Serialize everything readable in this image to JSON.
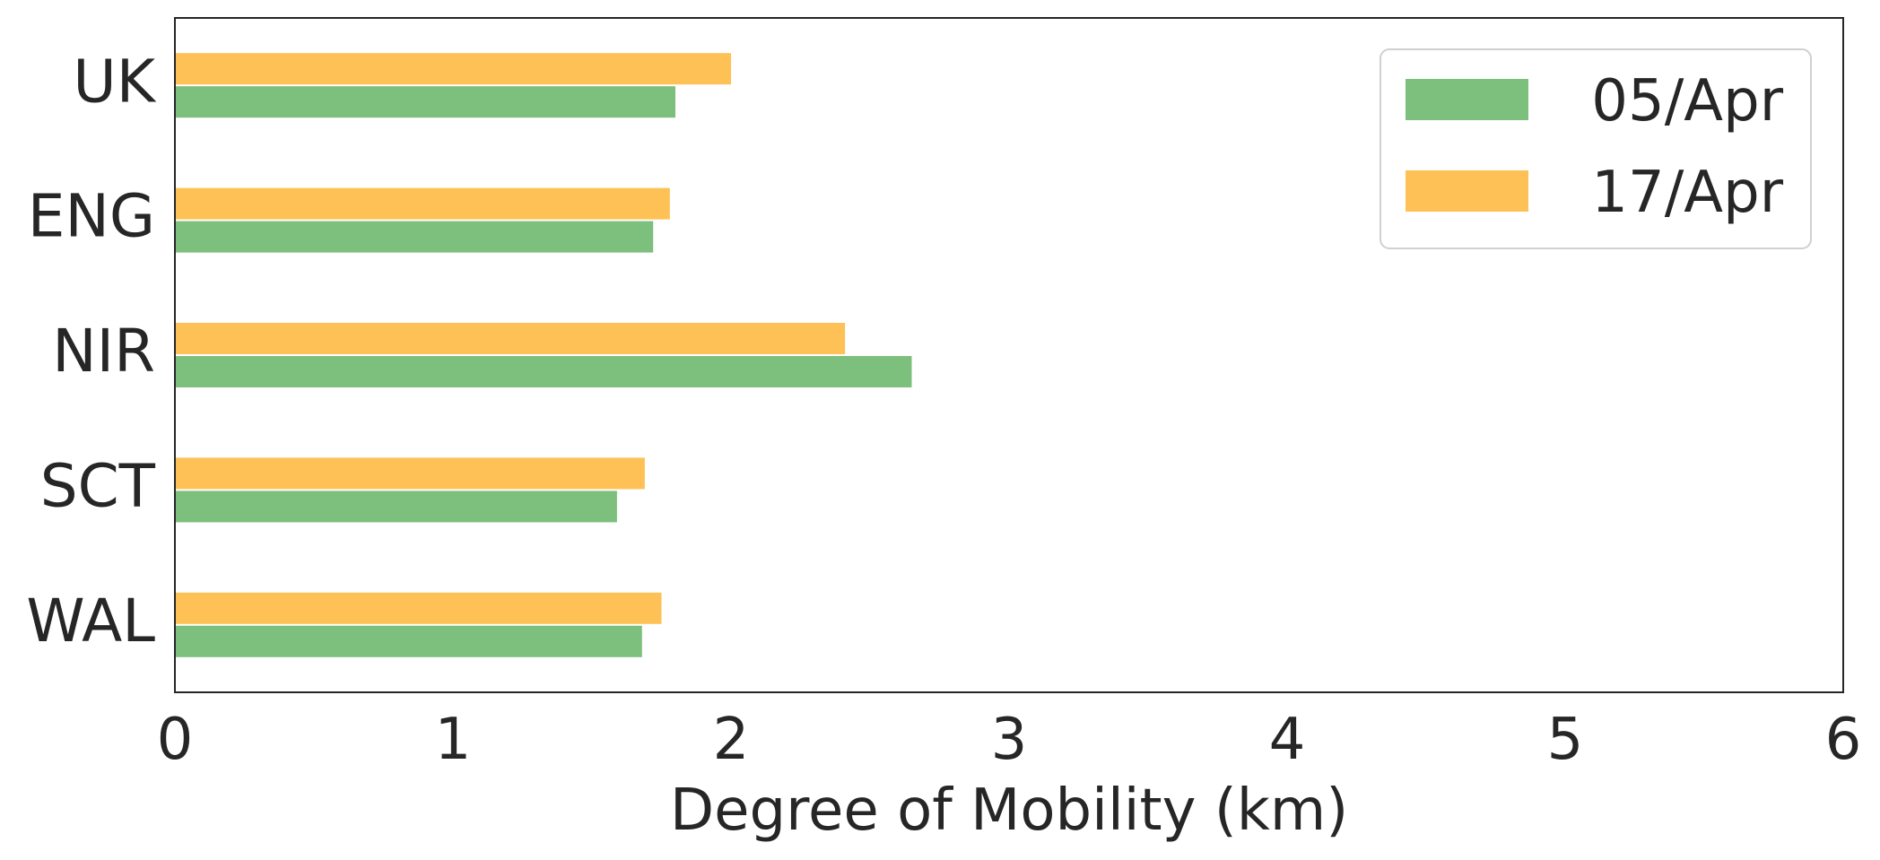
{
  "chart_data": {
    "type": "bar",
    "orientation": "horizontal",
    "categories": [
      "UK",
      "ENG",
      "NIR",
      "SCT",
      "WAL"
    ],
    "series": [
      {
        "name": "05/Apr",
        "color": "#7dbf7d",
        "values": [
          1.8,
          1.72,
          2.65,
          1.59,
          1.68
        ]
      },
      {
        "name": "17/Apr",
        "color": "#fec156",
        "values": [
          2.0,
          1.78,
          2.41,
          1.69,
          1.75
        ]
      }
    ],
    "xlabel": "Degree of Mobility (km)",
    "ylabel": "",
    "title": "",
    "xlim": [
      0,
      6
    ],
    "xticks": [
      "0",
      "1",
      "2",
      "3",
      "4",
      "5",
      "6"
    ],
    "grid": false,
    "legend_position": "top-right"
  }
}
